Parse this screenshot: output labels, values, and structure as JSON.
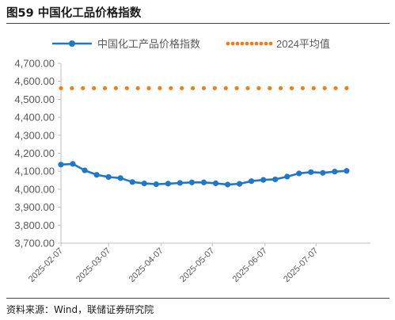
{
  "figure": {
    "title": "图59 中国化工品价格指数",
    "source": "资料来源：Wind，联储证券研究院"
  },
  "colors": {
    "index_line": "#1f77c9",
    "avg_line": "#f07d1a",
    "axis": "#bfbfbf",
    "text": "#595959"
  },
  "chart_data": {
    "type": "line",
    "ylim": [
      3700,
      4700
    ],
    "y_ticks": [
      3700,
      3800,
      3900,
      4000,
      4100,
      4200,
      4300,
      4400,
      4500,
      4600,
      4700
    ],
    "y_tick_labels": [
      "3,700.00",
      "3,800.00",
      "3,900.00",
      "4,000.00",
      "4,100.00",
      "4,200.00",
      "4,300.00",
      "4,400.00",
      "4,500.00",
      "4,600.00",
      "4,700.00"
    ],
    "xlim": [
      "2025-02-07",
      "2025-08-08"
    ],
    "x_ticks": [
      "2025-02-07",
      "2025-03-07",
      "2025-04-07",
      "2025-05-07",
      "2025-06-07",
      "2025-07-07"
    ],
    "legend_position": "top",
    "grid": false,
    "series": [
      {
        "name": "中国化工产品价格指数",
        "style": "solid-with-markers",
        "color": "#1f77c9",
        "points": [
          {
            "x": "2025-02-07",
            "y": 4137
          },
          {
            "x": "2025-02-14",
            "y": 4141
          },
          {
            "x": "2025-02-21",
            "y": 4105
          },
          {
            "x": "2025-02-28",
            "y": 4080
          },
          {
            "x": "2025-03-07",
            "y": 4068
          },
          {
            "x": "2025-03-14",
            "y": 4062
          },
          {
            "x": "2025-03-21",
            "y": 4040
          },
          {
            "x": "2025-03-28",
            "y": 4032
          },
          {
            "x": "2025-04-04",
            "y": 4028
          },
          {
            "x": "2025-04-11",
            "y": 4031
          },
          {
            "x": "2025-04-18",
            "y": 4035
          },
          {
            "x": "2025-04-25",
            "y": 4038
          },
          {
            "x": "2025-05-02",
            "y": 4038
          },
          {
            "x": "2025-05-09",
            "y": 4033
          },
          {
            "x": "2025-05-16",
            "y": 4026
          },
          {
            "x": "2025-05-23",
            "y": 4030
          },
          {
            "x": "2025-05-30",
            "y": 4045
          },
          {
            "x": "2025-06-06",
            "y": 4052
          },
          {
            "x": "2025-06-13",
            "y": 4055
          },
          {
            "x": "2025-06-20",
            "y": 4070
          },
          {
            "x": "2025-06-27",
            "y": 4088
          },
          {
            "x": "2025-07-04",
            "y": 4095
          },
          {
            "x": "2025-07-11",
            "y": 4091
          },
          {
            "x": "2025-07-18",
            "y": 4098
          },
          {
            "x": "2025-07-25",
            "y": 4102
          }
        ]
      },
      {
        "name": "2024平均值",
        "style": "dotted",
        "color": "#f07d1a",
        "points": [
          {
            "x": "2025-02-07",
            "y": 4562
          },
          {
            "x": "2025-02-14",
            "y": 4562
          },
          {
            "x": "2025-02-21",
            "y": 4562
          },
          {
            "x": "2025-02-28",
            "y": 4562
          },
          {
            "x": "2025-03-07",
            "y": 4562
          },
          {
            "x": "2025-03-14",
            "y": 4562
          },
          {
            "x": "2025-03-21",
            "y": 4562
          },
          {
            "x": "2025-03-28",
            "y": 4562
          },
          {
            "x": "2025-04-04",
            "y": 4562
          },
          {
            "x": "2025-04-11",
            "y": 4562
          },
          {
            "x": "2025-04-18",
            "y": 4562
          },
          {
            "x": "2025-04-25",
            "y": 4562
          },
          {
            "x": "2025-05-02",
            "y": 4562
          },
          {
            "x": "2025-05-09",
            "y": 4562
          },
          {
            "x": "2025-05-16",
            "y": 4562
          },
          {
            "x": "2025-05-23",
            "y": 4562
          },
          {
            "x": "2025-05-30",
            "y": 4562
          },
          {
            "x": "2025-06-06",
            "y": 4562
          },
          {
            "x": "2025-06-13",
            "y": 4562
          },
          {
            "x": "2025-06-20",
            "y": 4562
          },
          {
            "x": "2025-06-27",
            "y": 4562
          },
          {
            "x": "2025-07-04",
            "y": 4562
          },
          {
            "x": "2025-07-11",
            "y": 4562
          },
          {
            "x": "2025-07-18",
            "y": 4562
          },
          {
            "x": "2025-07-25",
            "y": 4562
          }
        ]
      }
    ]
  }
}
